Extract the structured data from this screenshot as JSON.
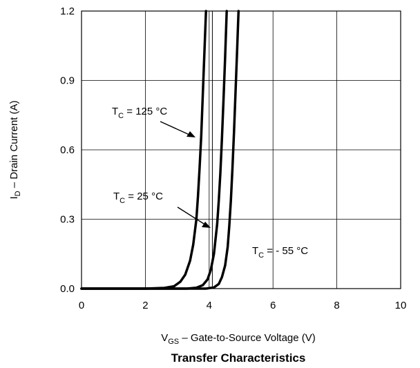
{
  "chart_data": {
    "type": "line",
    "title": "Transfer Characteristics",
    "xlabel": {
      "main": "V",
      "sub": "GS",
      "rest": " –  Gate-to-Source Voltage (V)"
    },
    "ylabel": {
      "main": "I",
      "sub": "D",
      "rest": " –  Drain Current (A)"
    },
    "xlim": [
      0,
      10
    ],
    "ylim": [
      0,
      1.2
    ],
    "xticks": [
      "0",
      "2",
      "4",
      "6",
      "8",
      "10"
    ],
    "yticks": [
      "0.0",
      "0.3",
      "0.6",
      "0.9",
      "1.2"
    ],
    "grid": true,
    "series": [
      {
        "name": "TC = 125 °C",
        "x": [
          0,
          1.0,
          2.0,
          2.6,
          2.9,
          3.1,
          3.25,
          3.4,
          3.5,
          3.6,
          3.65,
          3.7,
          3.75,
          3.8,
          3.85,
          3.9
        ],
        "y": [
          0.0,
          0.0,
          0.0,
          0.003,
          0.01,
          0.03,
          0.06,
          0.12,
          0.19,
          0.3,
          0.4,
          0.52,
          0.66,
          0.84,
          1.02,
          1.2
        ]
      },
      {
        "name": "TC = 25 °C",
        "x": [
          0,
          2.0,
          3.3,
          3.6,
          3.8,
          3.95,
          4.05,
          4.15,
          4.25,
          4.3,
          4.35,
          4.4,
          4.45,
          4.5,
          4.55
        ],
        "y": [
          0.0,
          0.0,
          0.0,
          0.004,
          0.015,
          0.04,
          0.08,
          0.15,
          0.28,
          0.38,
          0.5,
          0.65,
          0.82,
          1.0,
          1.2
        ]
      },
      {
        "name": "TC = - 55 °C",
        "x": [
          0,
          3.0,
          3.9,
          4.15,
          4.3,
          4.4,
          4.5,
          4.58,
          4.63,
          4.68,
          4.73,
          4.78,
          4.83,
          4.88,
          4.92
        ],
        "y": [
          0.0,
          0.0,
          0.0,
          0.005,
          0.02,
          0.05,
          0.1,
          0.18,
          0.27,
          0.38,
          0.52,
          0.68,
          0.86,
          1.05,
          1.2
        ]
      }
    ],
    "annotations": [
      {
        "main": "T",
        "sub": "C",
        "rest": " = 125 °C"
      },
      {
        "main": "T",
        "sub": "C",
        "rest": " = 25 °C"
      },
      {
        "main": "T",
        "sub": "C",
        "rest": " = - 55 °C"
      }
    ]
  }
}
